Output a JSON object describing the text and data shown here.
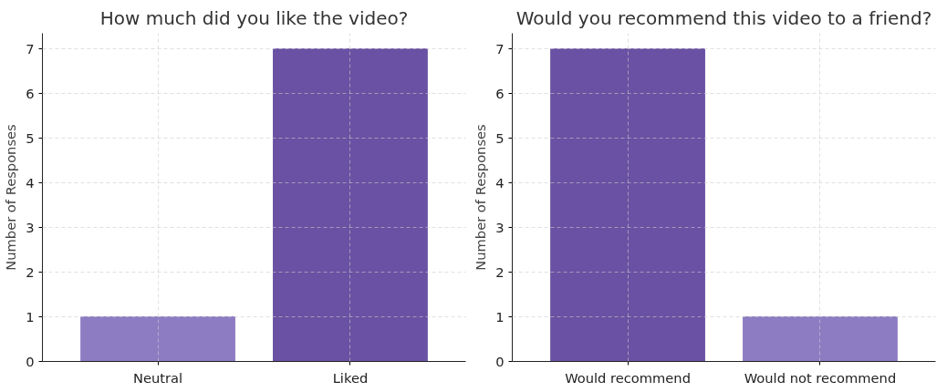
{
  "chart_data": [
    {
      "type": "bar",
      "title": "How much did you like the video?",
      "ylabel": "Number of Responses",
      "categories": [
        "Neutral",
        "Liked"
      ],
      "values": [
        1,
        7
      ],
      "colors": [
        "#8e7cc3",
        "#6a51a3"
      ],
      "ylim": [
        0,
        7.35
      ],
      "yticks": [
        0,
        1,
        2,
        3,
        4,
        5,
        6,
        7
      ],
      "grid": true
    },
    {
      "type": "bar",
      "title": "Would you recommend this video to a friend?",
      "ylabel": "Number of Responses",
      "categories": [
        "Would recommend",
        "Would not recommend"
      ],
      "values": [
        7,
        1
      ],
      "colors": [
        "#6a51a3",
        "#8e7cc3"
      ],
      "ylim": [
        0,
        7.35
      ],
      "yticks": [
        0,
        1,
        2,
        3,
        4,
        5,
        6,
        7
      ],
      "grid": true
    }
  ]
}
